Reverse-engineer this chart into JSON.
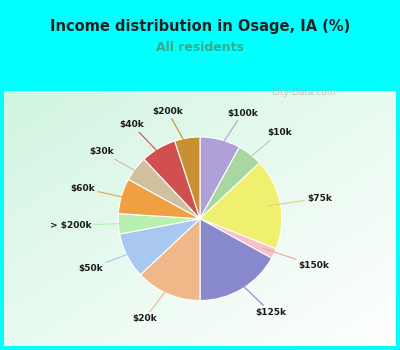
{
  "title": "Income distribution in Osage, IA (%)",
  "subtitle": "All residents",
  "title_color": "#222222",
  "subtitle_color": "#3aaa8a",
  "bg_top_color": "#00FFFF",
  "chart_bg_gradient_left": "#e8f8f0",
  "chart_bg_gradient_right": "#f8fffc",
  "labels": [
    "$100k",
    "$10k",
    "$75k",
    "$150k",
    "$125k",
    "$20k",
    "$50k",
    "> $200k",
    "$60k",
    "$30k",
    "$40k",
    "$200k"
  ],
  "values": [
    8,
    5,
    18,
    2,
    17,
    13,
    9,
    4,
    7,
    5,
    7,
    5
  ],
  "colors": [
    "#b0a0d8",
    "#a8d8a0",
    "#f0f070",
    "#f8c0c8",
    "#8888cc",
    "#f0b888",
    "#a8c8f0",
    "#b8f0b0",
    "#f0a040",
    "#d0c0a0",
    "#d05050",
    "#c89030"
  ],
  "line_colors": [
    "#b0a0d8",
    "#a8d8a0",
    "#d8d870",
    "#f8a0a8",
    "#8888cc",
    "#f0b888",
    "#a8c8f0",
    "#b8f0b0",
    "#f0a040",
    "#d0c0a0",
    "#d05050",
    "#c89030"
  ],
  "watermark": "City-Data.com",
  "startangle": 90
}
